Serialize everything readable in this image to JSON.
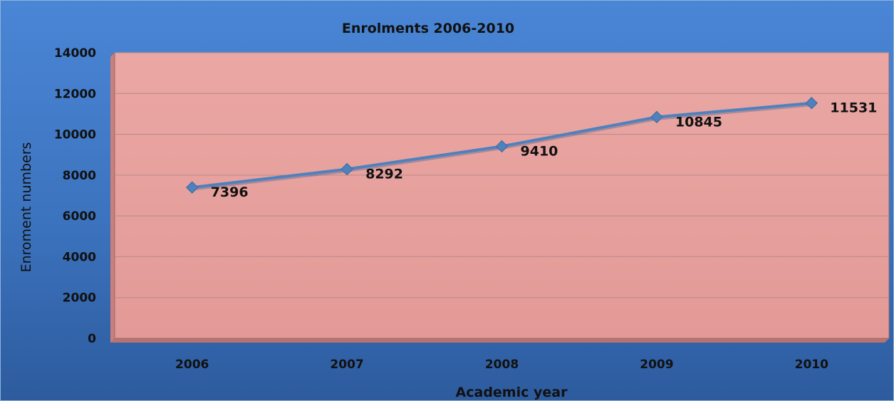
{
  "chart_data": {
    "type": "line",
    "title": "Enrolments 2006-2010",
    "xlabel": "Academic year",
    "ylabel": "Enroment numbers",
    "categories": [
      "2006",
      "2007",
      "2008",
      "2009",
      "2010"
    ],
    "series": [
      {
        "values": [
          7396,
          8292,
          9410,
          10845,
          11531
        ]
      }
    ],
    "data_labels": [
      "7396",
      "8292",
      "9410",
      "10845",
      "11531"
    ],
    "ylim": [
      0,
      14000
    ],
    "yticks": [
      0,
      2000,
      4000,
      6000,
      8000,
      10000,
      12000,
      14000
    ],
    "ytick_labels": [
      "0",
      "2000",
      "4000",
      "6000",
      "8000",
      "10000",
      "12000",
      "14000"
    ],
    "grid": true,
    "legend": "none",
    "colors": {
      "background": "#3b6fb5",
      "plot_area": "#e6a19e",
      "line": "#4f81bd",
      "gridline": "#b58a8a"
    }
  }
}
